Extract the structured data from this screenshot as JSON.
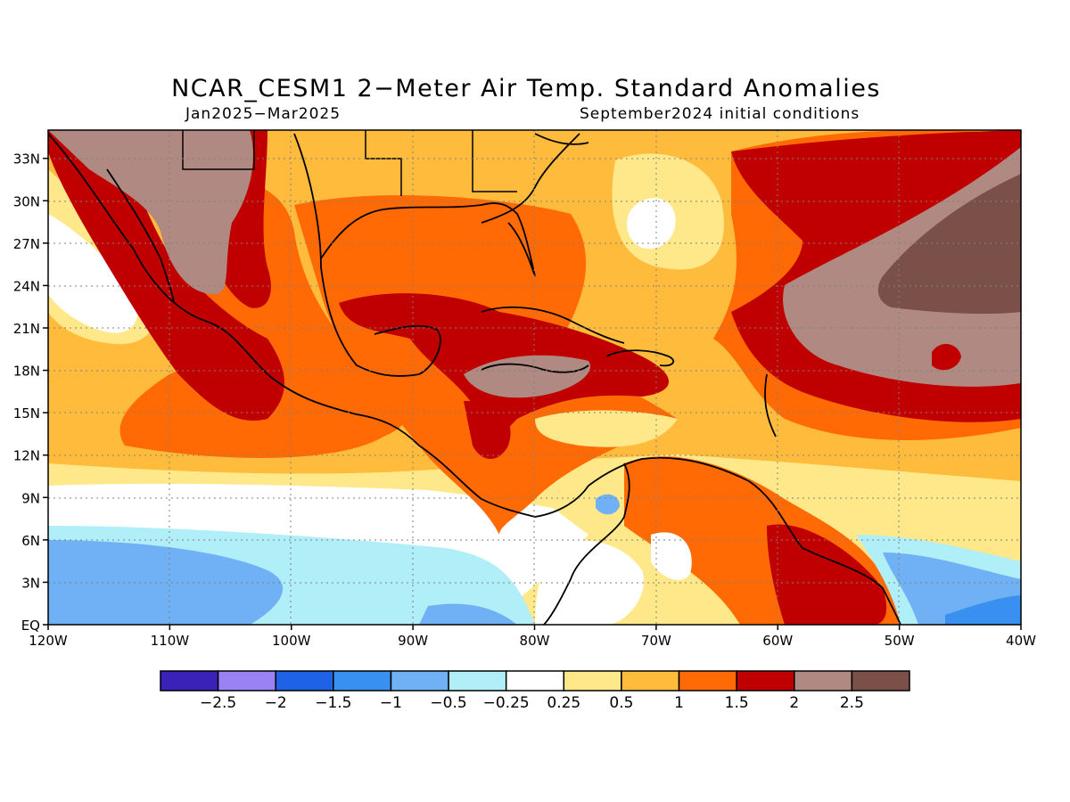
{
  "title": "NCAR_CESM1 2−Meter Air Temp. Standard Anomalies",
  "subtitle_left": "Jan2025−Mar2025",
  "subtitle_right": "September2024 initial conditions",
  "map": {
    "lon_range": [
      "120W",
      "40W"
    ],
    "lat_range": [
      "EQ",
      "35N"
    ],
    "lon_ticks": [
      "120W",
      "110W",
      "100W",
      "90W",
      "80W",
      "70W",
      "60W",
      "50W",
      "40W"
    ],
    "lat_ticks": [
      "EQ",
      "3N",
      "6N",
      "9N",
      "12N",
      "15N",
      "18N",
      "21N",
      "24N",
      "27N",
      "30N",
      "33N"
    ],
    "grid": "dotted"
  },
  "colorbar": {
    "labels": [
      "−2.5",
      "−2",
      "−1.5",
      "−1",
      "−0.5",
      "−0.25",
      "0.25",
      "0.5",
      "1",
      "1.5",
      "2",
      "2.5"
    ],
    "colors": [
      "#3a22b8",
      "#9a82f5",
      "#1e62e6",
      "#3a90f0",
      "#70b0f5",
      "#b0eef8",
      "#ffffff",
      "#ffe88a",
      "#ffbb3c",
      "#ff6a05",
      "#c00000",
      "#b08a82",
      "#7a5048"
    ]
  }
}
